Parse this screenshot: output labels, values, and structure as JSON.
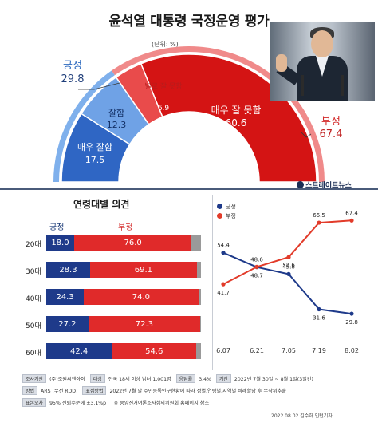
{
  "title": "윤석열 대통령 국정운영 평가",
  "unit_note": "(단위: %)",
  "gauge": {
    "positive": {
      "label": "긍정",
      "value": 29.8,
      "color": "#3f7fd4"
    },
    "negative": {
      "label": "부정",
      "value": 67.4,
      "color": "#d91f1f"
    },
    "segments": [
      {
        "name": "매우 잘함",
        "value": 17.5,
        "color": "#2f66c4"
      },
      {
        "name": "잘함",
        "value": 12.3,
        "color": "#6fa2e6"
      },
      {
        "name": "별로 잘 못함",
        "value": 6.9,
        "color": "#e94b4b"
      },
      {
        "name": "매우 잘 못함",
        "value": 60.6,
        "color": "#d41414"
      }
    ]
  },
  "brand": "스트레이트뉴스",
  "age_section": {
    "title": "연령대별 의견",
    "pos_header": "긍정",
    "neg_header": "부정"
  },
  "trend_legend": {
    "positive": "긍정",
    "negative": "부정"
  },
  "footer": {
    "rows": [
      [
        {
          "tag": "조사기관",
          "text": "(주)조원씨앤아이"
        },
        {
          "tag": "대상",
          "text": "전국 18세 이상 남녀 1,001명"
        },
        {
          "tag": "응답률",
          "text": "3.4%"
        },
        {
          "tag": "기간",
          "text": "2022년 7월 30일 ~ 8월 1일(3일간)"
        }
      ],
      [
        {
          "tag": "방법",
          "text": "ARS (무선 RDD)"
        },
        {
          "tag": "표집방법",
          "text": "2022년 7월 말 주민등록인구현황에 따라 성별,연령별,지역별 비례할당 후 무작위추출"
        }
      ],
      [
        {
          "tag": "표본오차",
          "text": "95% 신뢰수준에 ±3.1%p"
        },
        {
          "tag": "",
          "text": "※ 중앙선거여론조사심의위원회 홈페이지 참조"
        }
      ]
    ],
    "credit": "2022.08.02 김수하 인턴기자"
  },
  "chart_data": [
    {
      "type": "pie",
      "title": "윤석열 대통령 국정운영 평가",
      "categories": [
        "매우 잘함",
        "잘함",
        "별로 잘 못함",
        "매우 잘 못함"
      ],
      "values": [
        17.5,
        12.3,
        6.9,
        60.6
      ],
      "totals": {
        "긍정": 29.8,
        "부정": 67.4
      }
    },
    {
      "type": "bar",
      "title": "연령대별 의견",
      "categories": [
        "20대",
        "30대",
        "40대",
        "50대",
        "60대"
      ],
      "series": [
        {
          "name": "긍정",
          "values": [
            18.0,
            28.3,
            24.3,
            27.2,
            42.4
          ],
          "color": "#1e3a8a"
        },
        {
          "name": "부정",
          "values": [
            76.0,
            69.1,
            74.0,
            72.3,
            54.6
          ],
          "color": "#e02a2a"
        }
      ],
      "stacked": true,
      "xlim": [
        0,
        100
      ]
    },
    {
      "type": "line",
      "x": [
        "6.07",
        "6.21",
        "7.05",
        "7.19",
        "8.02"
      ],
      "series": [
        {
          "name": "긍정",
          "values": [
            54.4,
            48.6,
            45.8,
            31.6,
            29.8
          ],
          "color": "#1e3a8a"
        },
        {
          "name": "부정",
          "values": [
            41.7,
            48.7,
            52.6,
            66.5,
            67.4
          ],
          "color": "#e23b2a"
        }
      ],
      "ylim": [
        25,
        72
      ],
      "grid": false,
      "legend": "top-left"
    }
  ]
}
